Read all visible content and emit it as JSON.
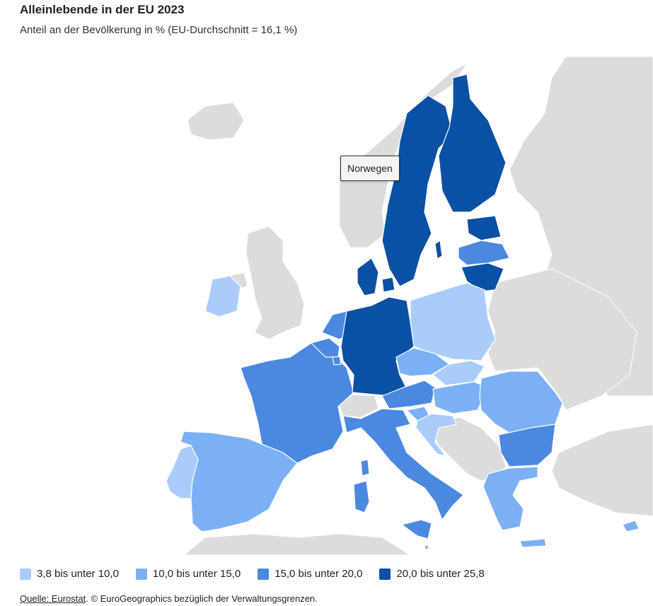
{
  "title": "Alleinlebende in der EU 2023",
  "subtitle": "Anteil an der Bevölkerung in % (EU-Durchschnitt = 16,1 %)",
  "tooltip": "Norwegen",
  "colors": {
    "background_land": "#dcdcdc",
    "class_1": "#a9ccfb",
    "class_2": "#7bb0f5",
    "class_3": "#4b89e0",
    "class_4": "#0a50a4"
  },
  "legend": [
    {
      "label": "3,8 bis unter 10,0",
      "color": "#a9ccfb"
    },
    {
      "label": "10,0 bis unter 15,0",
      "color": "#7bb0f5"
    },
    {
      "label": "15,0 bis unter 20,0",
      "color": "#4b89e0"
    },
    {
      "label": "20,0 bis unter 25,8",
      "color": "#0a50a4"
    }
  ],
  "source": {
    "link_text": "Quelle: Eurostat",
    "rest": ". © EuroGeographics bezüglich der Verwaltungsgrenzen."
  },
  "country_classes": {
    "Irland": 1,
    "Portugal": 1,
    "Polen": 1,
    "Kroatien": 1,
    "Slowakei": 1,
    "Spanien": 2,
    "Tschechien": 2,
    "Ungarn": 2,
    "Rumänien": 2,
    "Griechenland": 2,
    "Slowenien": 2,
    "Zypern": 2,
    "Malta": 2,
    "Frankreich": 3,
    "Italien": 3,
    "Österreich": 3,
    "Belgien": 3,
    "Niederlande": 3,
    "Bulgarien": 3,
    "Lettland": 3,
    "Luxemburg": 3,
    "Deutschland": 4,
    "Dänemark": 4,
    "Schweden": 4,
    "Finnland": 4,
    "Estland": 4,
    "Litauen": 4
  }
}
